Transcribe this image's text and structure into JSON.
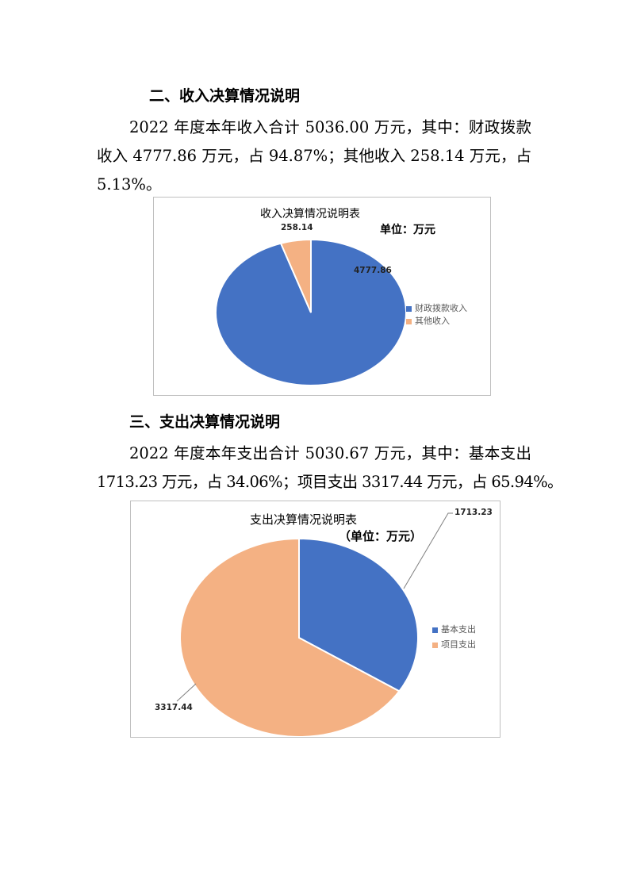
{
  "section2": {
    "heading": "二、收入决算情况说明",
    "lines": [
      "2022 年度本年收入合计 5036.00 万元，其中：财政拨款",
      "收入 4777.86 万元，占 94.87%；其他收入 258.14 万元，占",
      "5.13%。"
    ]
  },
  "section3": {
    "heading": "三、支出决算情况说明",
    "lines": [
      "2022 年度本年支出合计 5030.67 万元，其中：基本支出",
      "1713.23 万元，占 34.06%；项目支出 3317.44 万元，占 65.94%。"
    ]
  },
  "chart_data": [
    {
      "type": "pie",
      "title": "收入决算情况说明表",
      "subtitle": "单位：万元",
      "legend_position": "right",
      "categories": [
        "财政拨款收入",
        "其他收入"
      ],
      "values": [
        4777.86,
        258.14
      ],
      "data_labels": [
        "4777.86",
        "258.14"
      ],
      "colors": [
        "#4472C4",
        "#F4B183"
      ]
    },
    {
      "type": "pie",
      "title": "支出决算情况说明表",
      "subtitle": "（单位：万元）",
      "legend_position": "right",
      "categories": [
        "基本支出",
        "项目支出"
      ],
      "values": [
        1713.23,
        3317.44
      ],
      "data_labels": [
        "1713.23",
        "3317.44"
      ],
      "colors": [
        "#4472C4",
        "#F4B183"
      ]
    }
  ]
}
